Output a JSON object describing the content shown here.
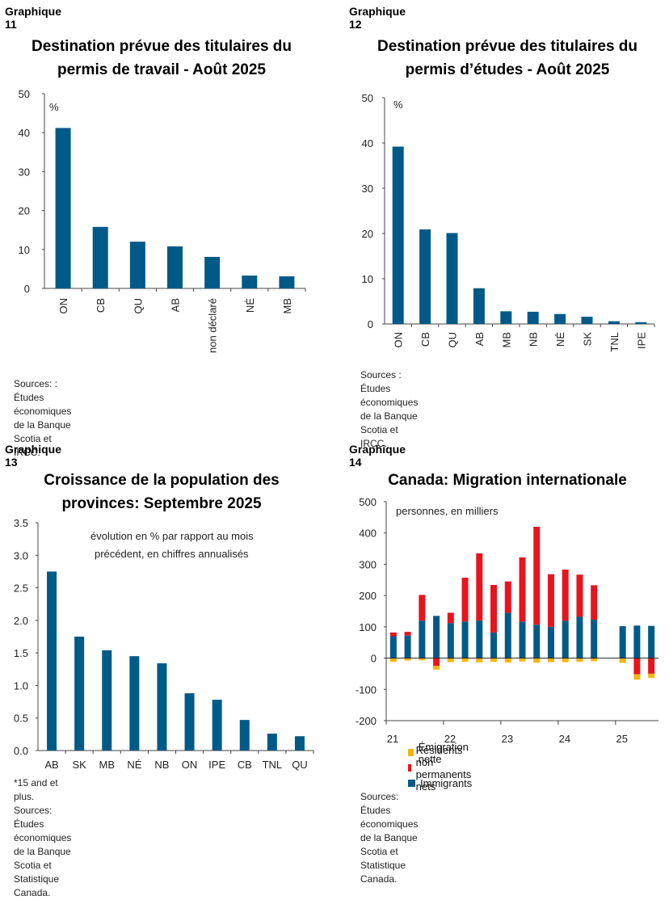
{
  "charts": [
    {
      "graph_label": "Graphique 11",
      "title_line1": "Destination prévue des titulaires du",
      "title_line2": "permis de travail - Août 2025",
      "unit_note": "%",
      "source": "Sources: : Études économiques de la Banque Scotia et IRCC."
    },
    {
      "graph_label": "Graphique 12",
      "title_line1": "Destination prévue des titulaires du",
      "title_line2": "permis d’études - Août 2025",
      "unit_note": "%",
      "source_line1": "Sources : Études économiques de la Banque Scotia et",
      "source_line2": "IRCC."
    },
    {
      "graph_label": "Graphique 13",
      "title_line1": "Croissance de la population des",
      "title_line2": "provinces: Septembre 2025",
      "note_line1": "évolution en % par rapport au mois",
      "note_line2": "précédent, en chiffres annualisés",
      "footnote": "*15 and et plus.",
      "source_line1": "Sources: Études économiques de la Banque Scotia et",
      "source_line2": "Statistique Canada."
    },
    {
      "graph_label": "Graphique 14",
      "title": "Canada: Migration internationale",
      "unit_note": "personnes, en milliers",
      "legend": [
        "Émigration nette",
        "Résidents non permanents nets",
        "Immigrants"
      ],
      "source_line1": "Sources: Études économiques de la Banque Scotia et",
      "source_line2": "Statistique Canada."
    }
  ],
  "colors": {
    "blue": "#005a87",
    "red": "#e8141d",
    "yellow": "#f5b50a"
  },
  "chart_data": [
    {
      "type": "bar",
      "categories": [
        "ON",
        "CB",
        "QU",
        "AB",
        "non déclaré",
        "NÉ",
        "MB"
      ],
      "values": [
        41.2,
        15.8,
        12.0,
        10.8,
        8.1,
        3.3,
        3.1
      ],
      "ylim": [
        0,
        50
      ],
      "yticks": [
        0,
        10,
        20,
        30,
        40,
        50
      ]
    },
    {
      "type": "bar",
      "categories": [
        "ON",
        "CB",
        "QU",
        "AB",
        "MB",
        "NB",
        "NÉ",
        "SK",
        "TNL",
        "IPE"
      ],
      "values": [
        39.2,
        20.9,
        20.1,
        7.9,
        2.8,
        2.7,
        2.2,
        1.6,
        0.6,
        0.4
      ],
      "ylim": [
        0,
        50
      ],
      "yticks": [
        0,
        10,
        20,
        30,
        40,
        50
      ]
    },
    {
      "type": "bar",
      "categories": [
        "AB",
        "SK",
        "MB",
        "NÉ",
        "NB",
        "ON",
        "IPE",
        "CB",
        "TNL",
        "QU"
      ],
      "values": [
        2.75,
        1.75,
        1.54,
        1.45,
        1.34,
        0.88,
        0.78,
        0.47,
        0.26,
        0.22
      ],
      "ylim": [
        0,
        3.5
      ],
      "yticks": [
        "0.0",
        "0.5",
        "1.0",
        "1.5",
        "2.0",
        "2.5",
        "3.0",
        "3.5"
      ]
    },
    {
      "type": "bar",
      "stacked": true,
      "x": [
        "21T1",
        "21T2",
        "21T3",
        "21T4",
        "22T1",
        "22T2",
        "22T3",
        "22T4",
        "23T1",
        "23T2",
        "23T3",
        "23T4",
        "24T1",
        "24T2",
        "24T3",
        "24T4",
        "25T1",
        "25T2",
        "25T3"
      ],
      "xticks": [
        "21",
        "22",
        "23",
        "24",
        "25"
      ],
      "ylim": [
        -200,
        500
      ],
      "yticks": [
        -200,
        -100,
        0,
        100,
        200,
        300,
        400,
        500
      ],
      "series": [
        {
          "name": "Immigrants",
          "values": [
            70,
            72,
            120,
            135,
            112,
            117,
            120,
            82,
            145,
            117,
            107,
            100,
            120,
            132,
            123,
            0,
            102,
            104,
            103
          ]
        },
        {
          "name": "Résidents non permanents nets",
          "values": [
            12,
            12,
            82,
            -25,
            33,
            140,
            215,
            152,
            100,
            205,
            313,
            168,
            163,
            135,
            110,
            0,
            0,
            -52,
            -50
          ]
        },
        {
          "name": "Émigration nette",
          "values": [
            -12,
            -8,
            -7,
            -12,
            -13,
            -12,
            -14,
            -12,
            -14,
            -11,
            -15,
            -13,
            -13,
            -12,
            -10,
            0,
            -15,
            -17,
            -13
          ]
        }
      ]
    }
  ]
}
